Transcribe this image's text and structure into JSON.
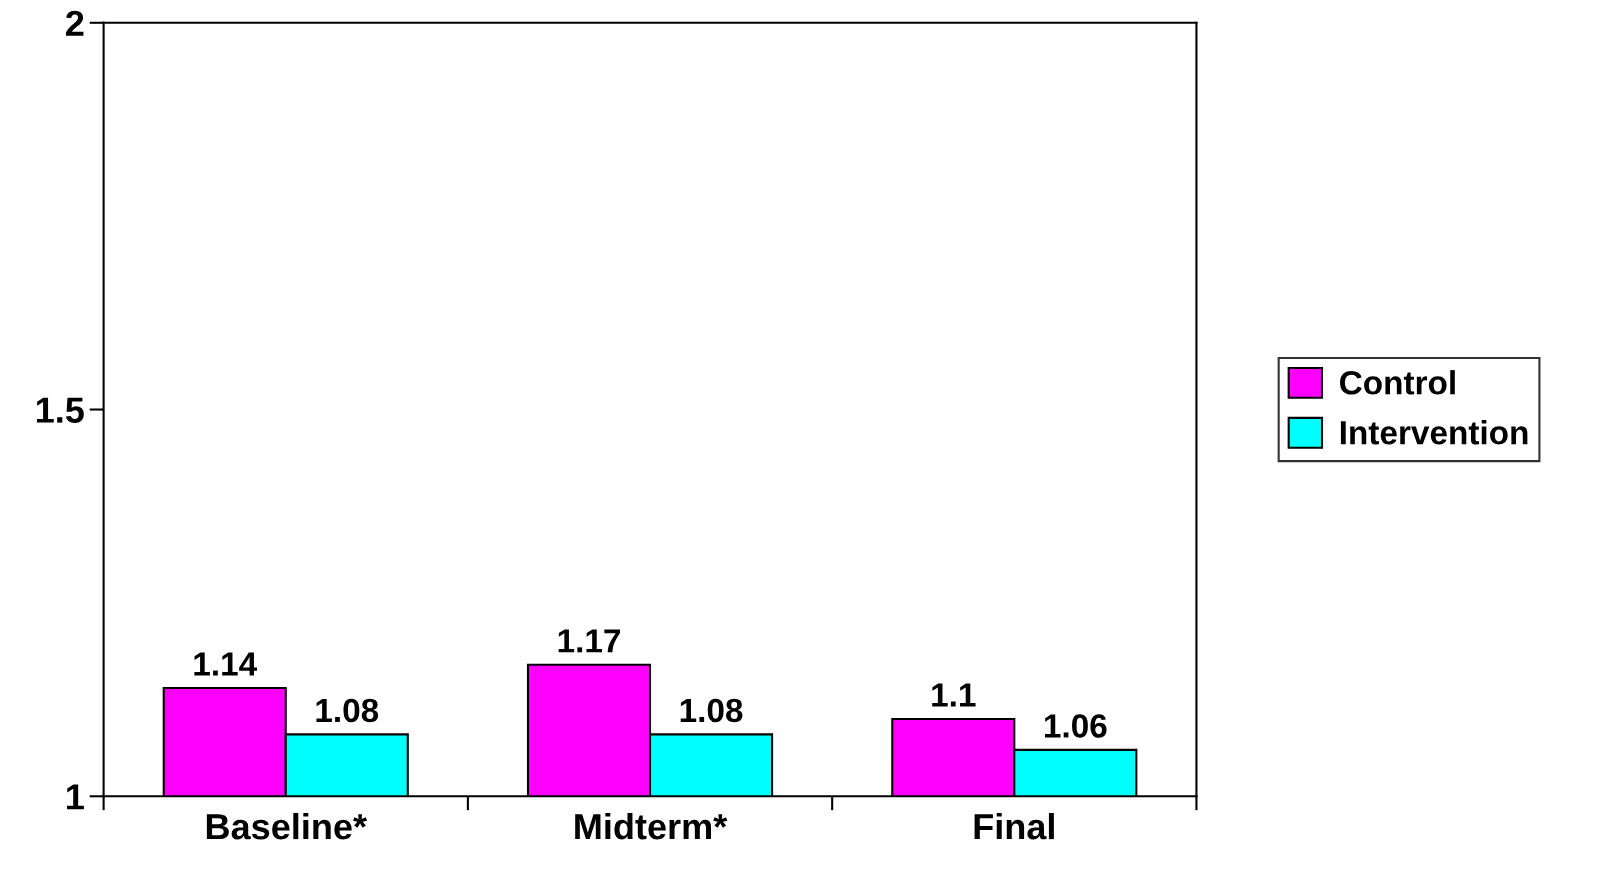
{
  "chart_data": {
    "type": "bar",
    "categories": [
      "Baseline*",
      "Midterm*",
      "Final"
    ],
    "series": [
      {
        "name": "Control",
        "color": "#ff00ff",
        "values": [
          1.14,
          1.17,
          1.1
        ]
      },
      {
        "name": "Intervention",
        "color": "#00ffff",
        "values": [
          1.08,
          1.08,
          1.06
        ]
      }
    ],
    "ylim": [
      1,
      2
    ],
    "yticks": [
      1,
      1.5,
      2
    ],
    "data_labels": true,
    "legend": "right",
    "grid": false
  }
}
